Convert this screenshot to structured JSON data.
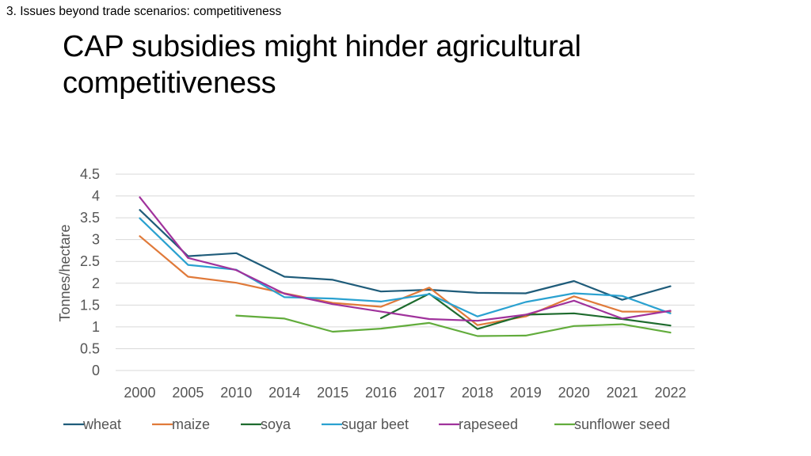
{
  "header": {
    "section_label": "3. Issues beyond trade scenarios: competitiveness",
    "title": "CAP subsidies might hinder agricultural competitiveness"
  },
  "chart_data": {
    "type": "line",
    "title": "",
    "xlabel": "",
    "ylabel": "Tonnes/hectare",
    "ylim": [
      0,
      4.5
    ],
    "yticks": [
      "0",
      "0.5",
      "1",
      "1.5",
      "2",
      "2.5",
      "3",
      "3.5",
      "4",
      "4.5"
    ],
    "grid": true,
    "legend_position": "bottom",
    "categories": [
      "2000",
      "2005",
      "2010",
      "2014",
      "2015",
      "2016",
      "2017",
      "2018",
      "2019",
      "2020",
      "2021",
      "2022"
    ],
    "series": [
      {
        "name": "wheat",
        "color": "#1f5c7a",
        "values": [
          3.68,
          2.62,
          2.69,
          2.15,
          2.08,
          1.81,
          1.85,
          1.78,
          1.77,
          2.05,
          1.62,
          1.93
        ]
      },
      {
        "name": "maize",
        "color": "#e07a3a",
        "values": [
          3.08,
          2.15,
          2.01,
          1.77,
          1.55,
          1.46,
          1.9,
          1.04,
          1.24,
          1.7,
          1.35,
          1.35
        ]
      },
      {
        "name": "soya",
        "color": "#1e6b2e",
        "values": [
          null,
          null,
          null,
          null,
          null,
          1.2,
          1.76,
          0.95,
          1.28,
          1.31,
          1.18,
          1.03
        ]
      },
      {
        "name": "sugar beet",
        "color": "#2aa1d0",
        "values": [
          3.49,
          2.42,
          2.31,
          1.68,
          1.65,
          1.58,
          1.75,
          1.24,
          1.57,
          1.77,
          1.71,
          1.31
        ]
      },
      {
        "name": "rapeseed",
        "color": "#a0329c",
        "values": [
          3.97,
          2.58,
          2.3,
          1.76,
          1.52,
          1.35,
          1.18,
          1.14,
          1.28,
          1.6,
          1.19,
          1.37
        ]
      },
      {
        "name": "sunflower seed",
        "color": "#62ac3c",
        "values": [
          null,
          null,
          1.26,
          1.19,
          0.89,
          0.96,
          1.09,
          0.79,
          0.8,
          1.02,
          1.06,
          0.87
        ]
      }
    ]
  }
}
